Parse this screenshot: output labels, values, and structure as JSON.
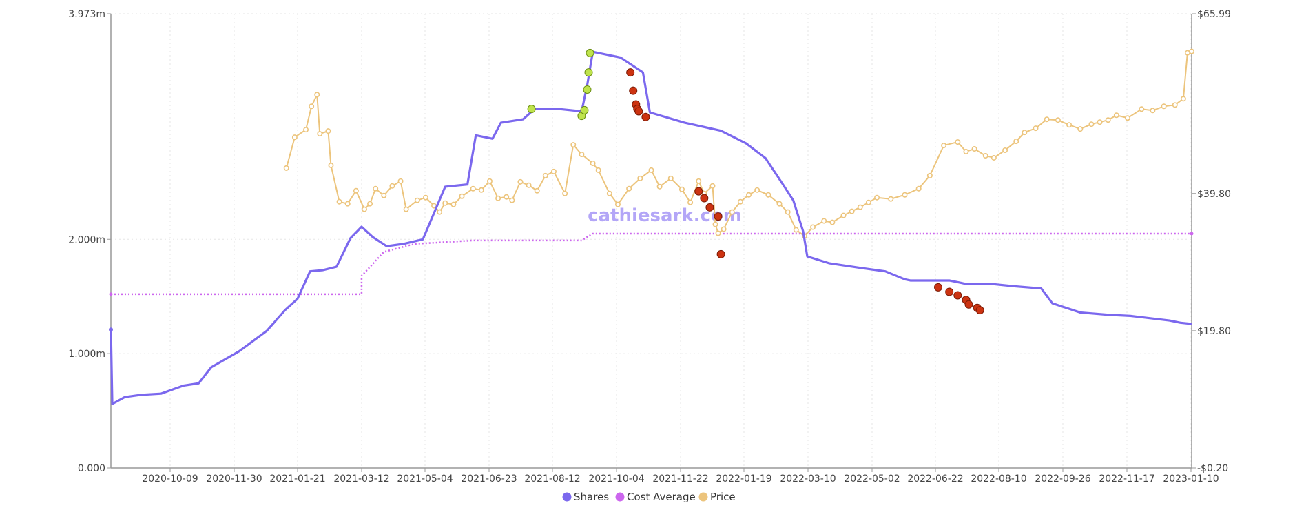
{
  "chart_data": {
    "type": "line",
    "title": "",
    "watermark": "cathiesark.com",
    "x_labels": [
      "2020-10-09",
      "2020-11-30",
      "2021-01-21",
      "2021-03-12",
      "2021-05-04",
      "2021-06-23",
      "2021-08-12",
      "2021-10-04",
      "2021-11-22",
      "2022-01-19",
      "2022-03-10",
      "2022-05-02",
      "2022-06-22",
      "2022-08-10",
      "2022-09-26",
      "2022-11-17",
      "2023-01-10"
    ],
    "left_axis": {
      "ylim": [
        0,
        3.973
      ],
      "tick_labels": [
        "0.000",
        "1.000m",
        "2.000m",
        "3.973m"
      ],
      "tick_values": [
        0,
        1.0,
        2.0,
        3.973
      ]
    },
    "right_axis": {
      "ylim": [
        -0.2,
        65.99
      ],
      "tick_labels": [
        "-$0.20",
        "$19.80",
        "$39.80",
        "$65.99"
      ],
      "tick_values": [
        -0.2,
        19.8,
        39.8,
        65.99
      ]
    },
    "legend": {
      "placement": "bottom-center",
      "entries": [
        "Shares",
        "Cost Average",
        "Price"
      ]
    },
    "colors": {
      "shares": "#7b68ee",
      "cost_average": "#cc66ee",
      "price": "#ecc47c",
      "buy": "#bfe34c",
      "sell": "#cc3311",
      "axis": "#999999",
      "grid": "#e6e6e6"
    },
    "series": [
      {
        "name": "Shares",
        "axis": "left",
        "unit": "millions",
        "points": [
          [
            0,
            1.21
          ],
          [
            1,
            0.56
          ],
          [
            10,
            0.62
          ],
          [
            22,
            0.64
          ],
          [
            36,
            0.65
          ],
          [
            52,
            0.72
          ],
          [
            63,
            0.74
          ],
          [
            72,
            0.88
          ],
          [
            92,
            1.02
          ],
          [
            112,
            1.2
          ],
          [
            125,
            1.38
          ],
          [
            134,
            1.48
          ],
          [
            143,
            1.72
          ],
          [
            152,
            1.73
          ],
          [
            162,
            1.76
          ],
          [
            172,
            2.01
          ],
          [
            180,
            2.11
          ],
          [
            188,
            2.02
          ],
          [
            198,
            1.94
          ],
          [
            210,
            1.96
          ],
          [
            224,
            2.0
          ],
          [
            240,
            2.46
          ],
          [
            256,
            2.48
          ],
          [
            262,
            2.91
          ],
          [
            274,
            2.88
          ],
          [
            280,
            3.02
          ],
          [
            296,
            3.05
          ],
          [
            304,
            3.14
          ],
          [
            322,
            3.14
          ],
          [
            338,
            3.12
          ],
          [
            342,
            3.35
          ],
          [
            346,
            3.64
          ],
          [
            366,
            3.59
          ],
          [
            382,
            3.46
          ],
          [
            387,
            3.11
          ],
          [
            412,
            3.02
          ],
          [
            438,
            2.95
          ],
          [
            456,
            2.84
          ],
          [
            470,
            2.71
          ],
          [
            482,
            2.49
          ],
          [
            490,
            2.34
          ],
          [
            497,
            2.07
          ],
          [
            500,
            1.85
          ],
          [
            516,
            1.79
          ],
          [
            538,
            1.75
          ],
          [
            556,
            1.72
          ],
          [
            570,
            1.65
          ],
          [
            574,
            1.64
          ],
          [
            586,
            1.64
          ],
          [
            602,
            1.64
          ],
          [
            614,
            1.61
          ],
          [
            632,
            1.61
          ],
          [
            648,
            1.59
          ],
          [
            668,
            1.57
          ],
          [
            676,
            1.44
          ],
          [
            696,
            1.36
          ],
          [
            716,
            1.34
          ],
          [
            732,
            1.33
          ],
          [
            760,
            1.29
          ],
          [
            768,
            1.27
          ],
          [
            776,
            1.26
          ]
        ],
        "buy_markers": [
          [
            302,
            3.14
          ],
          [
            338,
            3.08
          ],
          [
            340,
            3.13
          ],
          [
            342,
            3.31
          ],
          [
            343,
            3.46
          ],
          [
            344,
            3.63
          ]
        ],
        "sell_markers": [
          [
            373,
            3.46
          ],
          [
            375,
            3.3
          ],
          [
            377,
            3.18
          ],
          [
            378,
            3.14
          ],
          [
            379,
            3.12
          ],
          [
            384,
            3.07
          ],
          [
            422,
            2.42
          ],
          [
            426,
            2.36
          ],
          [
            430,
            2.28
          ],
          [
            436,
            2.2
          ],
          [
            438,
            1.87
          ],
          [
            594,
            1.58
          ],
          [
            602,
            1.54
          ],
          [
            608,
            1.51
          ],
          [
            614,
            1.47
          ],
          [
            616,
            1.43
          ],
          [
            622,
            1.4
          ],
          [
            624,
            1.38
          ]
        ]
      },
      {
        "name": "Cost Average",
        "axis": "left",
        "unit": "dollars",
        "style": "dotted",
        "points": [
          [
            0,
            1.52
          ],
          [
            180,
            1.52
          ],
          [
            180,
            1.68
          ],
          [
            196,
            1.89
          ],
          [
            218,
            1.96
          ],
          [
            260,
            1.99
          ],
          [
            338,
            1.99
          ],
          [
            346,
            2.05
          ],
          [
            776,
            2.05
          ]
        ]
      },
      {
        "name": "Price",
        "axis": "right",
        "unit": "dollars",
        "points": [
          [
            126,
            43.5
          ],
          [
            132,
            48.0
          ],
          [
            140,
            49.1
          ],
          [
            144,
            52.5
          ],
          [
            148,
            54.2
          ],
          [
            150,
            48.5
          ],
          [
            156,
            48.9
          ],
          [
            158,
            43.9
          ],
          [
            164,
            38.6
          ],
          [
            170,
            38.3
          ],
          [
            176,
            40.2
          ],
          [
            182,
            37.5
          ],
          [
            186,
            38.3
          ],
          [
            190,
            40.5
          ],
          [
            196,
            39.5
          ],
          [
            202,
            40.9
          ],
          [
            208,
            41.6
          ],
          [
            212,
            37.5
          ],
          [
            220,
            38.8
          ],
          [
            226,
            39.2
          ],
          [
            232,
            38.0
          ],
          [
            236,
            37.1
          ],
          [
            240,
            38.4
          ],
          [
            246,
            38.2
          ],
          [
            252,
            39.4
          ],
          [
            260,
            40.5
          ],
          [
            266,
            40.3
          ],
          [
            272,
            41.6
          ],
          [
            278,
            39.1
          ],
          [
            284,
            39.3
          ],
          [
            288,
            38.8
          ],
          [
            294,
            41.5
          ],
          [
            300,
            41.0
          ],
          [
            306,
            40.2
          ],
          [
            312,
            42.4
          ],
          [
            318,
            43.0
          ],
          [
            326,
            39.8
          ],
          [
            332,
            46.9
          ],
          [
            338,
            45.5
          ],
          [
            346,
            44.2
          ],
          [
            350,
            43.2
          ],
          [
            358,
            39.8
          ],
          [
            364,
            38.2
          ],
          [
            372,
            40.5
          ],
          [
            380,
            42.0
          ],
          [
            388,
            43.2
          ],
          [
            394,
            40.8
          ],
          [
            402,
            42.0
          ],
          [
            410,
            40.4
          ],
          [
            416,
            38.5
          ],
          [
            422,
            41.6
          ],
          [
            426,
            39.8
          ],
          [
            432,
            40.9
          ],
          [
            434,
            35.3
          ],
          [
            436,
            34.0
          ],
          [
            440,
            34.6
          ],
          [
            446,
            37.1
          ],
          [
            452,
            38.6
          ],
          [
            458,
            39.6
          ],
          [
            464,
            40.3
          ],
          [
            472,
            39.6
          ],
          [
            480,
            38.3
          ],
          [
            486,
            37.1
          ],
          [
            492,
            34.5
          ],
          [
            498,
            33.6
          ],
          [
            504,
            34.9
          ],
          [
            512,
            35.8
          ],
          [
            518,
            35.6
          ],
          [
            526,
            36.6
          ],
          [
            532,
            37.2
          ],
          [
            538,
            37.8
          ],
          [
            544,
            38.5
          ],
          [
            550,
            39.2
          ],
          [
            560,
            39.0
          ],
          [
            570,
            39.6
          ],
          [
            580,
            40.5
          ],
          [
            588,
            42.4
          ],
          [
            598,
            46.8
          ],
          [
            608,
            47.3
          ],
          [
            614,
            45.9
          ],
          [
            620,
            46.3
          ],
          [
            628,
            45.3
          ],
          [
            634,
            45.0
          ],
          [
            642,
            46.1
          ],
          [
            650,
            47.4
          ],
          [
            656,
            48.7
          ],
          [
            664,
            49.3
          ],
          [
            672,
            50.6
          ],
          [
            680,
            50.5
          ],
          [
            688,
            49.8
          ],
          [
            696,
            49.2
          ],
          [
            704,
            49.9
          ],
          [
            710,
            50.2
          ],
          [
            716,
            50.5
          ],
          [
            722,
            51.2
          ],
          [
            730,
            50.8
          ],
          [
            740,
            52.1
          ],
          [
            748,
            51.9
          ],
          [
            756,
            52.5
          ],
          [
            764,
            52.7
          ],
          [
            770,
            53.6
          ],
          [
            773,
            60.3
          ],
          [
            776,
            60.5
          ]
        ]
      }
    ]
  }
}
